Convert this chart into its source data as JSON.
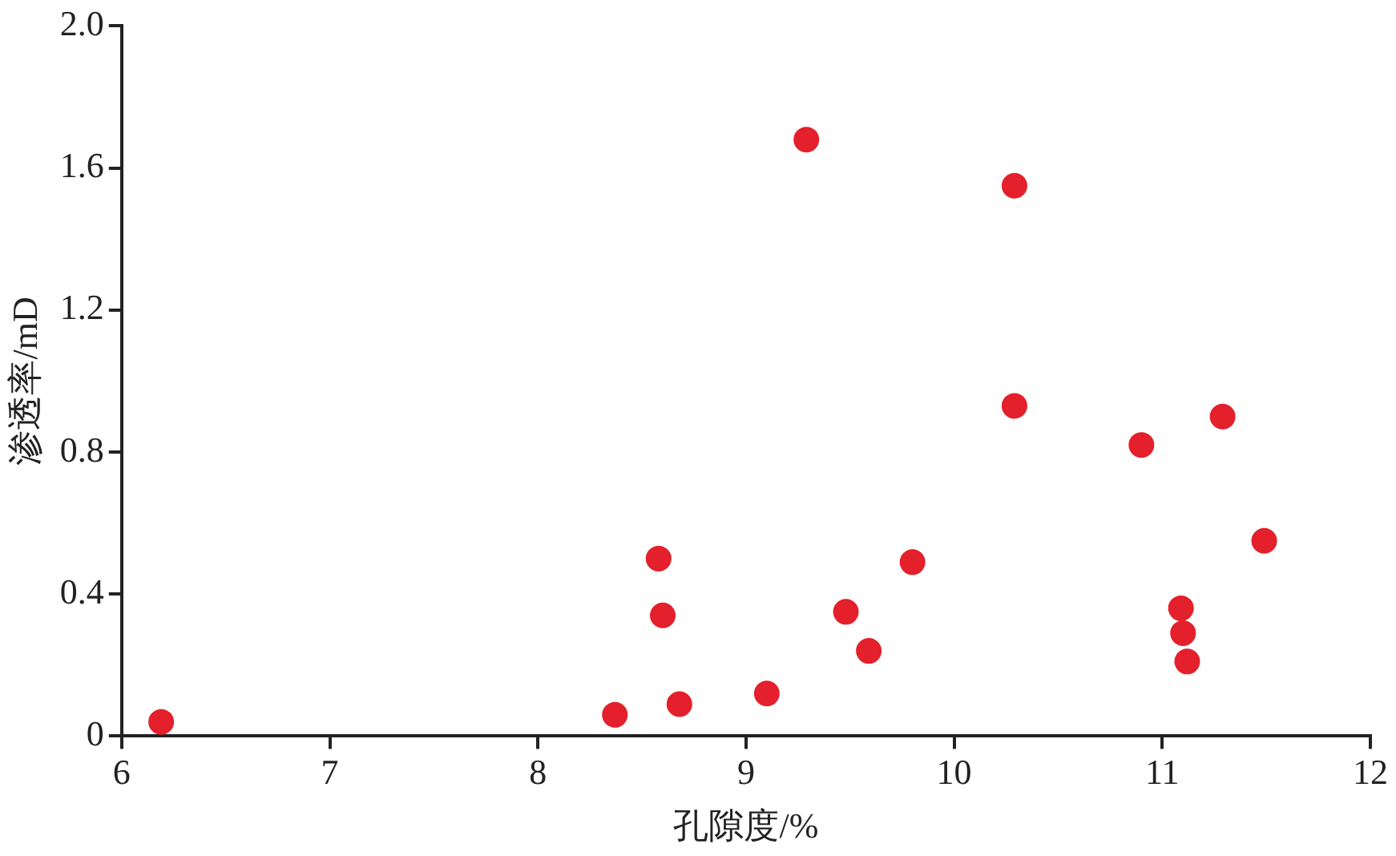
{
  "chart_data": {
    "type": "scatter",
    "xlabel": "孔隙度/%",
    "ylabel": "渗透率/mD",
    "x": [
      6.19,
      8.37,
      8.58,
      8.6,
      8.68,
      9.1,
      9.29,
      9.48,
      9.59,
      9.8,
      10.29,
      10.29,
      10.9,
      11.29,
      11.09,
      11.1,
      11.12,
      11.49
    ],
    "series": [
      {
        "color": "#e3202b",
        "values": [
          0.04,
          0.06,
          0.5,
          0.34,
          0.09,
          0.12,
          1.68,
          0.35,
          0.24,
          0.49,
          1.55,
          0.93,
          0.82,
          0.9,
          0.36,
          0.29,
          0.21,
          0.55
        ]
      }
    ],
    "xlim": [
      6,
      12
    ],
    "xticks": [
      6,
      7,
      8,
      9,
      10,
      11,
      12
    ],
    "ylim": [
      0,
      2
    ],
    "yticks": [
      0,
      0.4,
      0.8,
      1.2,
      1.6,
      {
        "value": 2,
        "label": "2.0"
      }
    ],
    "grid": false,
    "legend": false,
    "marker": "circle"
  }
}
